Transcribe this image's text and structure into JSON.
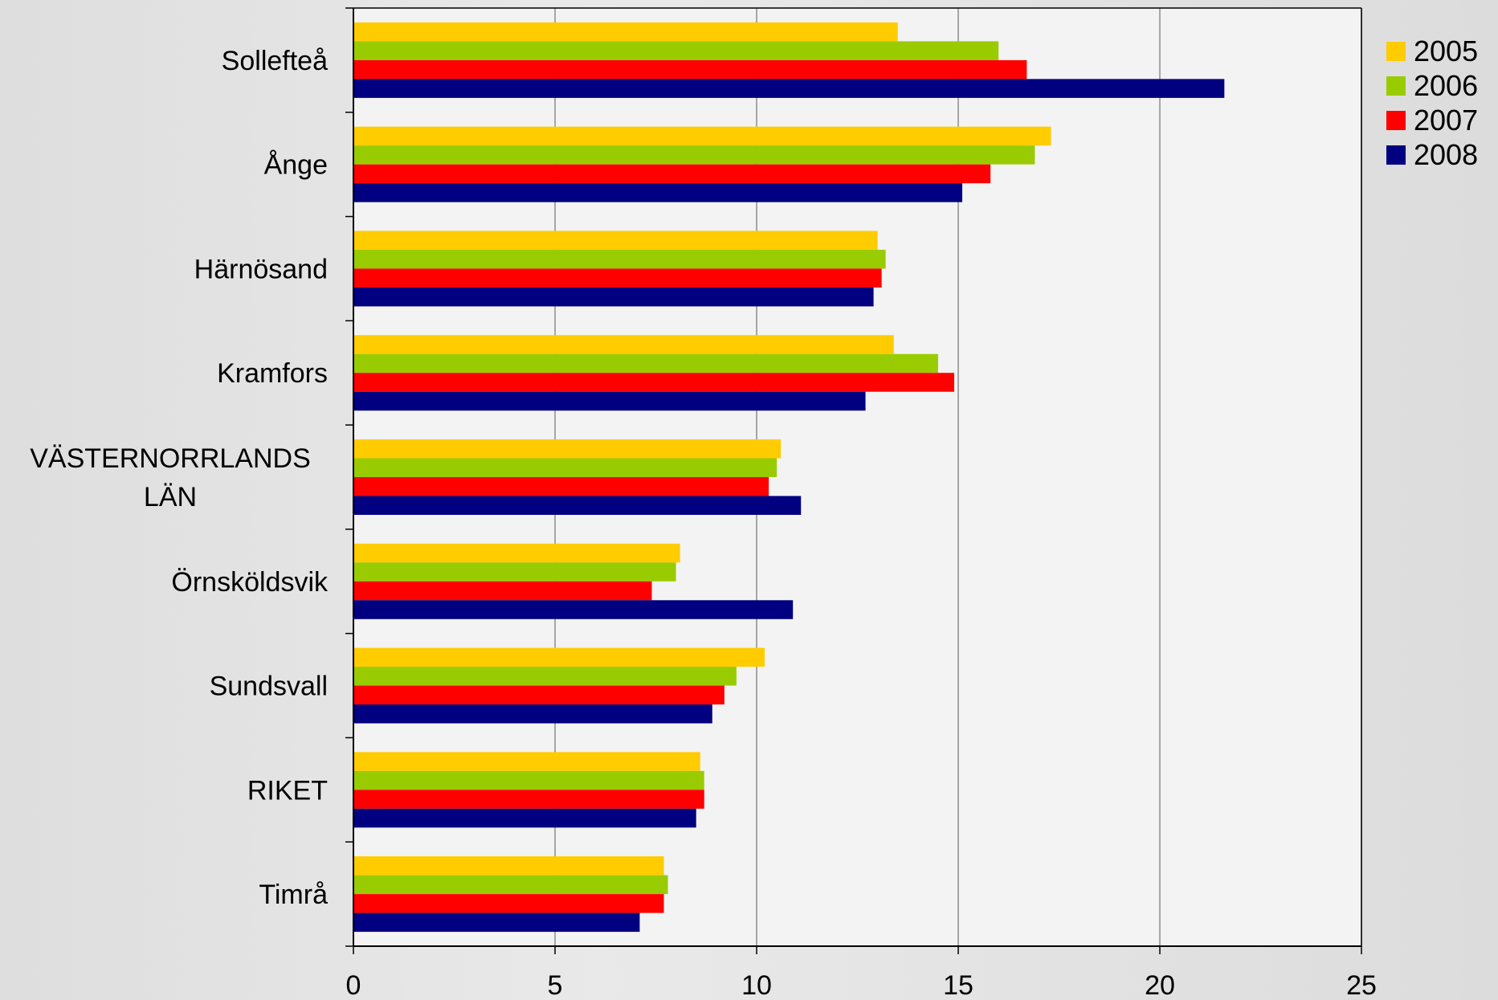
{
  "chart_data": {
    "type": "bar",
    "orientation": "horizontal",
    "title": "",
    "xlabel": "",
    "ylabel": "",
    "xlim": [
      0,
      25
    ],
    "x_ticks": [
      "0",
      "5",
      "10",
      "15",
      "20",
      "25"
    ],
    "grid": "vertical",
    "legend_position": "top-right",
    "categories": [
      [
        "Sollefteå"
      ],
      [
        "Ånge"
      ],
      [
        "Härnösand"
      ],
      [
        "Kramfors"
      ],
      [
        "VÄSTERNORRLANDS",
        "LÄN"
      ],
      [
        "Örnsköldsvik"
      ],
      [
        "Sundsvall"
      ],
      [
        "RIKET"
      ],
      [
        "Timrå"
      ]
    ],
    "series": [
      {
        "name": "2005",
        "color": "#FFCC00",
        "values": [
          13.5,
          17.3,
          13.0,
          13.4,
          10.6,
          8.1,
          10.2,
          8.6,
          7.7
        ]
      },
      {
        "name": "2006",
        "color": "#99CC00",
        "values": [
          16.0,
          16.9,
          13.2,
          14.5,
          10.5,
          8.0,
          9.5,
          8.7,
          7.8
        ]
      },
      {
        "name": "2007",
        "color": "#FF0000",
        "values": [
          16.7,
          15.8,
          13.1,
          14.9,
          10.3,
          7.4,
          9.2,
          8.7,
          7.7
        ]
      },
      {
        "name": "2008",
        "color": "#000080",
        "values": [
          21.6,
          15.1,
          12.9,
          12.7,
          11.1,
          10.9,
          8.9,
          8.5,
          7.1
        ]
      }
    ]
  }
}
